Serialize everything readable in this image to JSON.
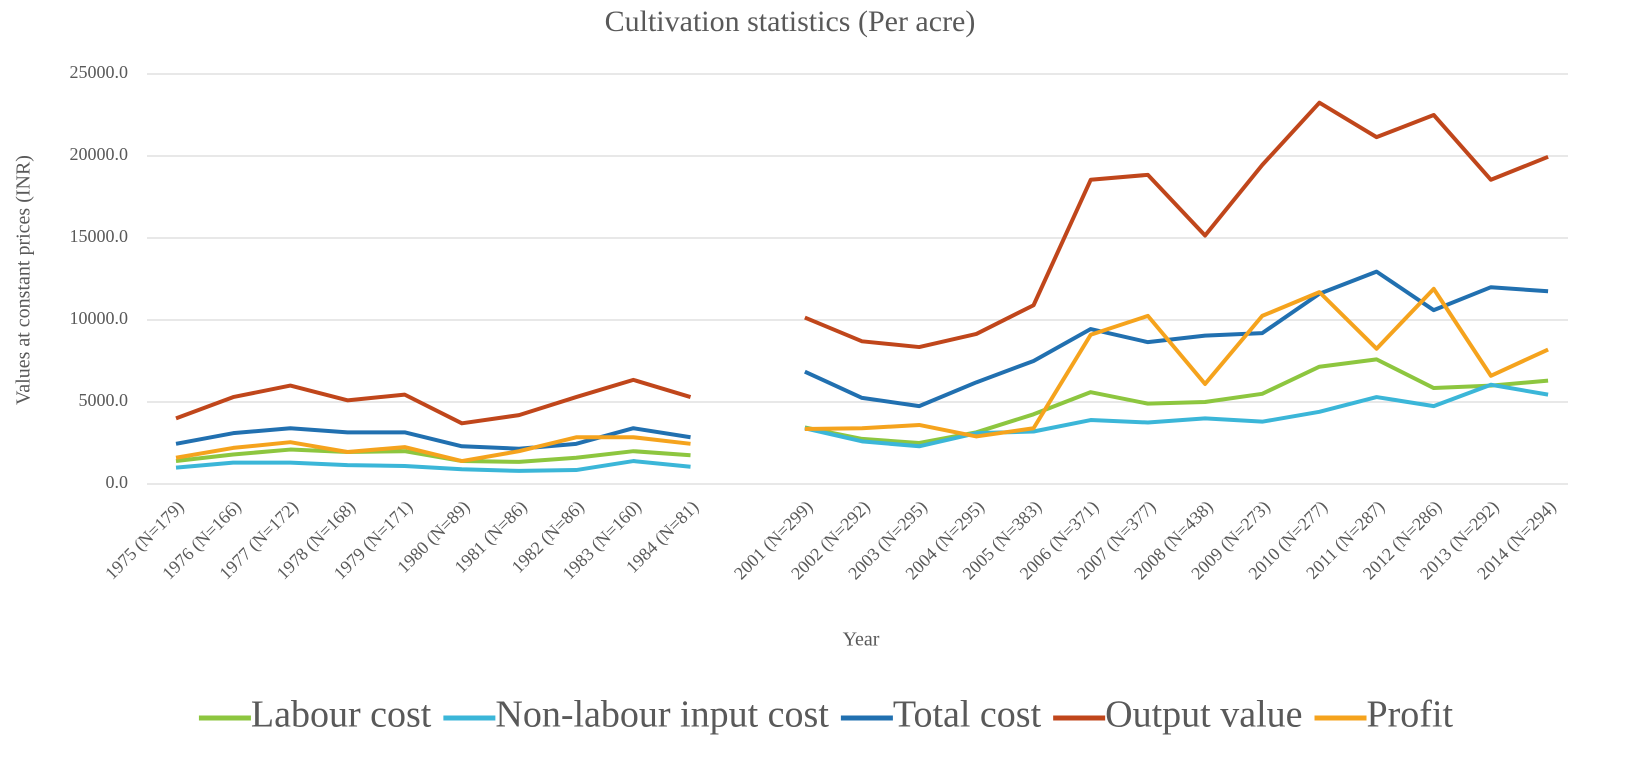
{
  "chart_data": {
    "type": "line",
    "title": "Cultivation  statistics (Per acre)",
    "x_label": "Year",
    "y_label": "Values at constant prices (INR)",
    "categories": [
      "1975 (N=179)",
      "1976 (N=166)",
      "1977 (N=172)",
      "1978 (N=168)",
      "1979 (N=171)",
      "1980 (N=89)",
      "1981 (N=86)",
      "1982 (N=86)",
      "1983 (N=160)",
      "1984 (N=81)",
      null,
      "2001 (N=299)",
      "2002 (N=292)",
      "2003 (N=295)",
      "2004 (N=295)",
      "2005 (N=383)",
      "2006 (N=371)",
      "2007 (N=377)",
      "2008 (N=438)",
      "2009 (N=273)",
      "2010 (N=277)",
      "2011 (N=287)",
      "2012 (N=286)",
      "2013 (N=292)",
      "2014 (N=294)"
    ],
    "series": [
      {
        "name": "Labour cost",
        "color": "#8dc63f",
        "values": [
          1400,
          1800,
          2100,
          1950,
          2000,
          1400,
          1350,
          1600,
          2000,
          1750,
          null,
          3450,
          2750,
          2500,
          3150,
          4250,
          5600,
          4900,
          5000,
          5500,
          7150,
          7600,
          5850,
          6000,
          6300
        ]
      },
      {
        "name": "Non-labour input cost",
        "color": "#3bb6d8",
        "values": [
          1000,
          1300,
          1300,
          1150,
          1100,
          900,
          800,
          850,
          1400,
          1050,
          null,
          3400,
          2600,
          2300,
          3100,
          3200,
          3900,
          3750,
          4000,
          3800,
          4400,
          5300,
          4750,
          6050,
          5450
        ]
      },
      {
        "name": "Total cost",
        "color": "#2170b0",
        "values": [
          2450,
          3100,
          3400,
          3150,
          3150,
          2300,
          2150,
          2450,
          3400,
          2850,
          null,
          6850,
          5250,
          4750,
          6200,
          7500,
          9450,
          8650,
          9050,
          9200,
          11600,
          12950,
          10600,
          12000,
          11750
        ]
      },
      {
        "name": "Output value",
        "color": "#c0461b",
        "values": [
          4000,
          5300,
          6000,
          5100,
          5450,
          3700,
          4200,
          5300,
          6350,
          5300,
          null,
          10150,
          8700,
          8350,
          9150,
          10900,
          18550,
          18850,
          15150,
          19450,
          23250,
          21150,
          22500,
          18550,
          19950
        ]
      },
      {
        "name": "Profit",
        "color": "#f5a31d",
        "values": [
          1600,
          2200,
          2550,
          1950,
          2250,
          1400,
          2000,
          2850,
          2850,
          2450,
          null,
          3350,
          3400,
          3600,
          2900,
          3400,
          9100,
          10250,
          6100,
          10250,
          11700,
          8250,
          11900,
          6600,
          8200
        ]
      }
    ],
    "ylim": [
      0,
      25000
    ],
    "yticks": [
      {
        "value": 0,
        "label": "0.0"
      },
      {
        "value": 5000,
        "label": "5000.0"
      },
      {
        "value": 10000,
        "label": "10000.0"
      },
      {
        "value": 15000,
        "label": "15000.0"
      },
      {
        "value": 20000,
        "label": "20000.0"
      },
      {
        "value": 25000,
        "label": "25000.0"
      }
    ],
    "grid": true,
    "legend": "bottom"
  }
}
